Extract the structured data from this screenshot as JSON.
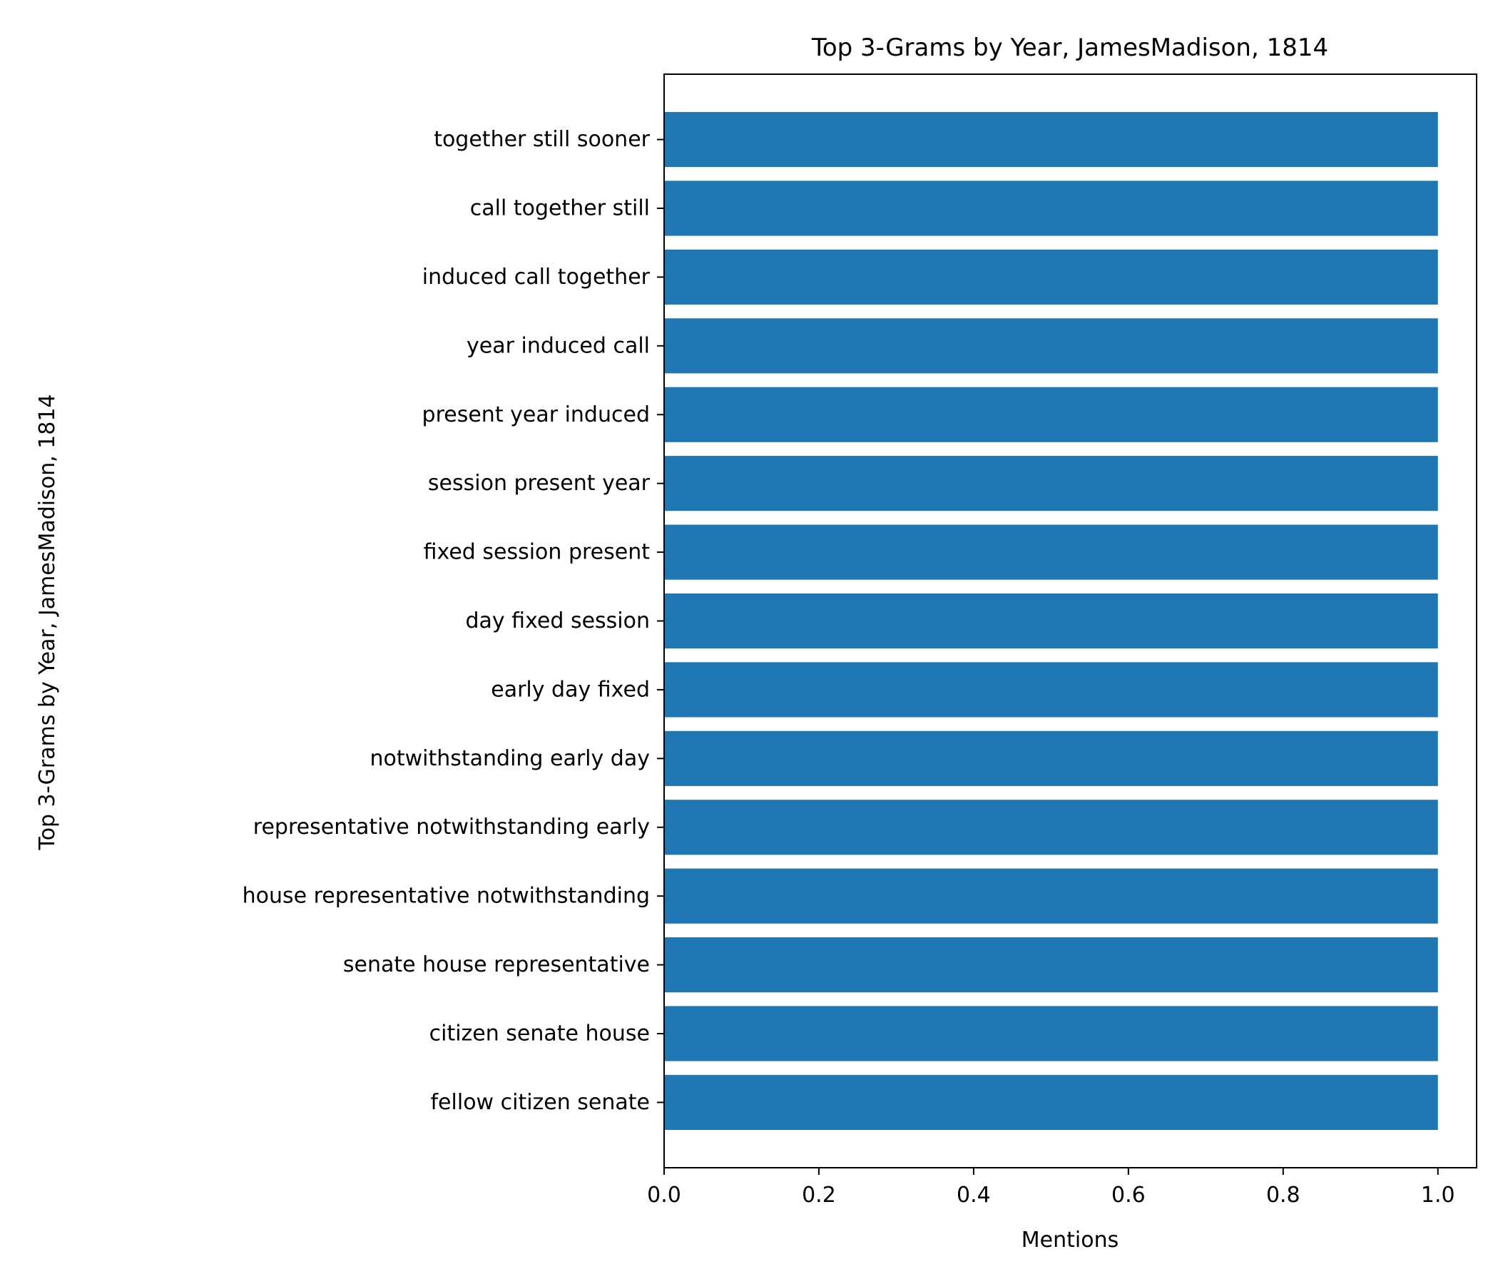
{
  "chart_data": {
    "type": "bar",
    "orientation": "horizontal",
    "title": "Top 3-Grams by Year, JamesMadison, 1814",
    "xlabel": "Mentions",
    "ylabel": "Top 3-Grams by Year, JamesMadison, 1814",
    "categories": [
      "fellow citizen senate",
      "citizen senate house",
      "senate house representative",
      "house representative notwithstanding",
      "representative notwithstanding early",
      "notwithstanding early day",
      "early day fixed",
      "day fixed session",
      "fixed session present",
      "session present year",
      "present year induced",
      "year induced call",
      "induced call together",
      "call together still",
      "together still sooner"
    ],
    "values": [
      1,
      1,
      1,
      1,
      1,
      1,
      1,
      1,
      1,
      1,
      1,
      1,
      1,
      1,
      1
    ],
    "xlim": [
      0,
      1.05
    ],
    "xticks": [
      "0.0",
      "0.2",
      "0.4",
      "0.6",
      "0.8",
      "1.0"
    ],
    "grid": false,
    "legend": "none",
    "bar_color": "#1f77b4"
  }
}
